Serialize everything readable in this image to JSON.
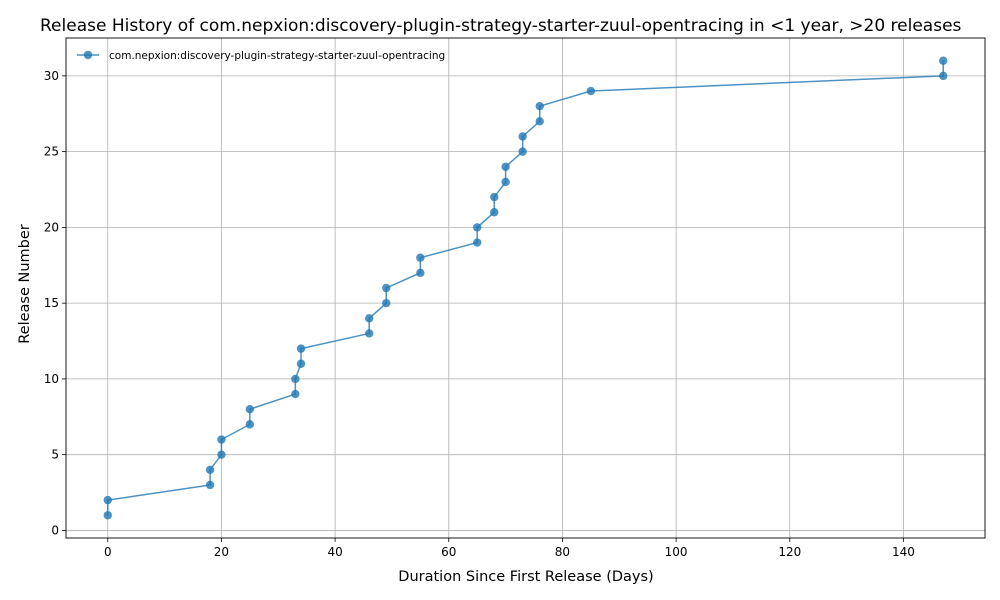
{
  "chart_data": {
    "type": "line",
    "title": "Release History of com.nepxion:discovery-plugin-strategy-starter-zuul-opentracing in <1 year, >20 releases",
    "xlabel": "Duration Since First Release (Days)",
    "ylabel": "Release Number",
    "xlim": [
      -7.35,
      154.35
    ],
    "ylim": [
      -0.5,
      32.5
    ],
    "xticks": [
      0,
      20,
      40,
      60,
      80,
      100,
      120,
      140
    ],
    "yticks": [
      0,
      5,
      10,
      15,
      20,
      25,
      30
    ],
    "grid": true,
    "legend_position": "top-left",
    "series": [
      {
        "name": "com.nepxion:discovery-plugin-strategy-starter-zuul-opentracing",
        "color": "#1f77b4",
        "marker": "circle",
        "x": [
          0,
          0,
          18,
          18,
          20,
          20,
          25,
          25,
          33,
          33,
          34,
          34,
          46,
          46,
          49,
          49,
          55,
          55,
          65,
          65,
          68,
          68,
          70,
          70,
          73,
          73,
          76,
          76,
          85,
          147,
          147
        ],
        "y": [
          1,
          2,
          3,
          4,
          5,
          6,
          7,
          8,
          9,
          10,
          11,
          12,
          13,
          14,
          15,
          16,
          17,
          18,
          19,
          20,
          21,
          22,
          23,
          24,
          25,
          26,
          27,
          28,
          29,
          30,
          31
        ]
      }
    ]
  }
}
